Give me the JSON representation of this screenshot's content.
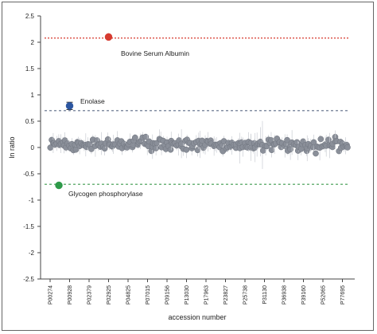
{
  "chart_data": {
    "type": "scatter",
    "title": "",
    "xlabel": "accession number",
    "ylabel": "ln ratio",
    "ylim": [
      -2.5,
      2.5
    ],
    "yticks": [
      -2.5,
      -2,
      -1.5,
      -1,
      -0.5,
      0,
      0.5,
      1,
      1.5,
      2,
      2.5
    ],
    "ytick_labels": [
      "-2.5",
      "-2",
      "-1.5",
      "-1",
      "-0.5",
      "0",
      "0.5",
      "1",
      "1.5",
      "2",
      "2.5"
    ],
    "xtick_labels": [
      "P00274",
      "P00928",
      "P02379",
      "P02925",
      "P04825",
      "P07015",
      "P09156",
      "P13030",
      "P17963",
      "P23827",
      "P25738",
      "P31130",
      "P36938",
      "P39160",
      "P52065",
      "P77695"
    ],
    "grid": false,
    "reference_lines": [
      {
        "y": 2.08,
        "color": "#d63a2f",
        "style": "dotted"
      },
      {
        "y": 0.7,
        "color": "#5d6b86",
        "style": "dashed"
      },
      {
        "y": -0.7,
        "color": "#3e9a4e",
        "style": "dashed"
      }
    ],
    "highlighted": [
      {
        "label": "Bovine Serum Albumin",
        "x": 3.0,
        "y": 2.1,
        "err": 0.03,
        "color": "#d63a2f"
      },
      {
        "label": "Enolase",
        "x": 1.0,
        "y": 0.79,
        "err": 0.07,
        "color": "#2c56a0"
      },
      {
        "label": "Glycogen phosphorylase",
        "x": 0.45,
        "y": -0.72,
        "err": 0.03,
        "color": "#2e9a49"
      }
    ],
    "background_series": {
      "name": "",
      "color": "#8a8f99",
      "n_points": 220,
      "x_range": [
        0,
        15.3
      ],
      "mean": 0.06,
      "spread": 0.06,
      "err_spread": 0.12
    }
  }
}
